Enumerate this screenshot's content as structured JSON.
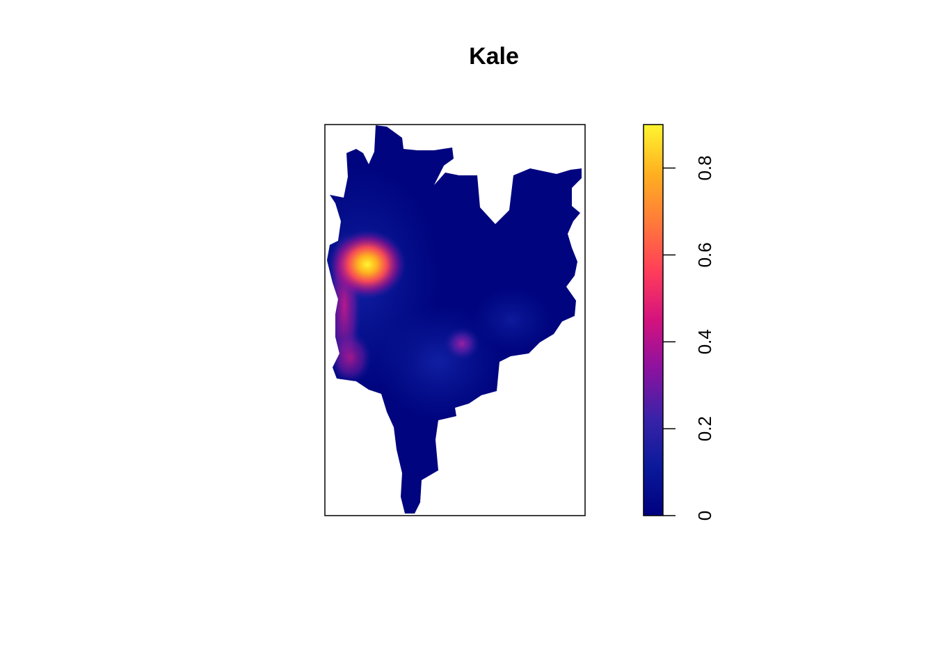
{
  "chart_data": {
    "type": "heatmap",
    "title": "Kale",
    "xlabel": "",
    "ylabel": "",
    "legend": {
      "placement": "right",
      "range": [
        0,
        0.9
      ],
      "ticks": [
        {
          "value": 0,
          "label": "0"
        },
        {
          "value": 0.2,
          "label": "0.2"
        },
        {
          "value": 0.4,
          "label": "0.4"
        },
        {
          "value": 0.6,
          "label": "0.6"
        },
        {
          "value": 0.8,
          "label": "0.8"
        }
      ],
      "colors": [
        "#00007F",
        "#0A1A9A",
        "#3A22A8",
        "#8B12A0",
        "#D4127E",
        "#FF3D5A",
        "#FF7A3A",
        "#FFB020",
        "#FFF530"
      ]
    },
    "hotspots": [
      {
        "name": "",
        "value": 0.9
      },
      {
        "name": "",
        "value": 0.3
      },
      {
        "name": "",
        "value": 0.25
      },
      {
        "name": "",
        "value": 0.2
      }
    ],
    "grid": false
  }
}
